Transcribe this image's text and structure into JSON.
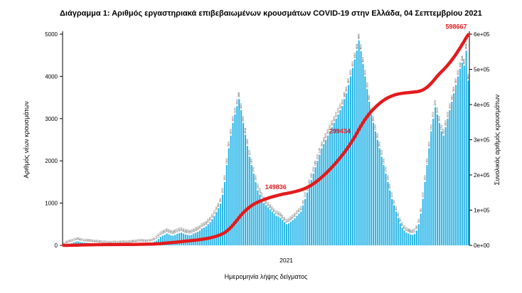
{
  "title": "Διάγραμμα 1: Αριθμός εργαστηριακά επιβεβαιωμένων κρουσμάτων COVID-19 στην Ελλάδα, 04 Σεπτεμβρίου 2021",
  "chart_data": {
    "type": "bar+line",
    "title": "Διάγραμμα 1: Αριθμός εργαστηριακά επιβεβαιωμένων κρουσμάτων COVID-19 στην Ελλάδα, 04 Σεπτεμβρίου 2021",
    "xlabel": "Ημερομηνία λήψης δείγματος",
    "x_tick_label": "2021",
    "ylabel_left": "Αριθμός νέων κρουσμάτων",
    "ylabel_right": "Συνολικός αριθμός κρουσμάτων",
    "ylim_left": [
      0,
      5000
    ],
    "ylim_right": [
      0,
      600000
    ],
    "yticks_left": [
      0,
      1000,
      2000,
      3000,
      4000,
      5000
    ],
    "yticks_right_labels": [
      "0e+00",
      "1e+05",
      "2e+05",
      "3e+05",
      "4e+05",
      "5e+05",
      "6e+05"
    ],
    "grid": false,
    "legend": "none",
    "bar_series": {
      "name": "Αριθμός νέων κρουσμάτων (ημερήσια)",
      "color": "#2bb6e8",
      "label_color": "#333333",
      "values": [
        5,
        10,
        20,
        35,
        50,
        70,
        90,
        95,
        80,
        70,
        60,
        60,
        55,
        50,
        45,
        40,
        35,
        30,
        25,
        20,
        15,
        12,
        10,
        10,
        12,
        15,
        10,
        12,
        15,
        18,
        20,
        20,
        25,
        30,
        35,
        40,
        50,
        60,
        55,
        50,
        45,
        50,
        60,
        70,
        90,
        110,
        150,
        200,
        230,
        250,
        280,
        260,
        240,
        230,
        250,
        270,
        290,
        300,
        280,
        260,
        250,
        240,
        250,
        280,
        300,
        320,
        350,
        400,
        420,
        450,
        500,
        550,
        620,
        700,
        790,
        880,
        990,
        1200,
        1500,
        1900,
        2300,
        2600,
        2900,
        3100,
        3300,
        3465,
        3200,
        2900,
        2618,
        2353,
        2100,
        1900,
        1700,
        1500,
        1300,
        1200,
        1100,
        1000,
        950,
        900,
        850,
        800,
        750,
        700,
        680,
        650,
        600,
        550,
        500,
        520,
        560,
        600,
        640,
        700,
        750,
        800,
        950,
        1100,
        1250,
        1400,
        1550,
        1700,
        1850,
        2000,
        2147,
        2300,
        2400,
        2500,
        2600,
        2700,
        2800,
        2900,
        3000,
        3100,
        3200,
        3300,
        3465,
        3600,
        3800,
        4000,
        4200,
        4400,
        4608,
        4850,
        4600,
        4300,
        4000,
        3700,
        3400,
        3100,
        2900,
        2700,
        2500,
        2300,
        2100,
        1900,
        1700,
        1500,
        1300,
        1100,
        950,
        800,
        650,
        520,
        420,
        350,
        300,
        280,
        260,
        250,
        270,
        350,
        500,
        750,
        1100,
        1500,
        1900,
        2300,
        2700,
        3000,
        3273,
        3100,
        2900,
        2700,
        2600,
        2800,
        3000,
        3200,
        3400,
        3600,
        3800,
        4000,
        4181,
        4326,
        4255,
        4608,
        3900
      ]
    },
    "line_series": {
      "name": "Συνολικός αριθμός κρουσμάτων (αθροιστικά)",
      "color": "#e31a1c",
      "final_total": 598667,
      "annotations": [
        {
          "value": 149836,
          "label": "149836"
        },
        {
          "value": 299434,
          "label": "299434"
        },
        {
          "value": 598667,
          "label": "598667"
        }
      ]
    }
  }
}
